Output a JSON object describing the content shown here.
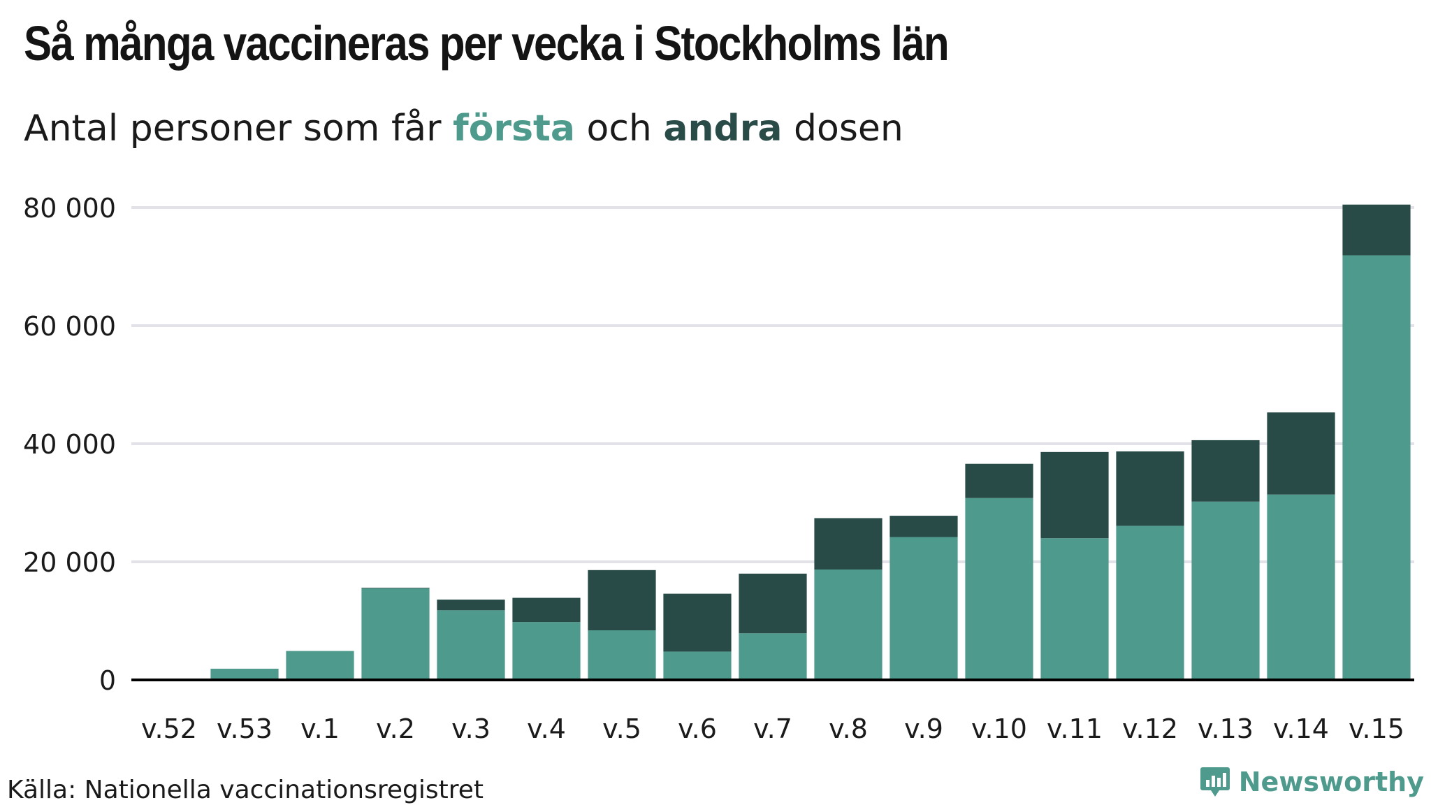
{
  "title": "Så många vaccineras per vecka i Stockholms län",
  "subtitle": {
    "prefix": "Antal personer som får ",
    "first": "första",
    "middle": " och ",
    "second": "andra",
    "suffix": " dosen"
  },
  "source": "Källa: Nationella vaccinationsregistret",
  "brand": "Newsworthy",
  "colors": {
    "first": "#4e9a8c",
    "second": "#284b47",
    "grid": "#e2e2e8",
    "axis": "#000000"
  },
  "chart_data": {
    "type": "bar",
    "stacked": true,
    "categories": [
      "v.52",
      "v.53",
      "v.1",
      "v.2",
      "v.3",
      "v.4",
      "v.5",
      "v.6",
      "v.7",
      "v.8",
      "v.9",
      "v.10",
      "v.11",
      "v.12",
      "v.13",
      "v.14",
      "v.15"
    ],
    "series": [
      {
        "name": "första",
        "color": "#4e9a8c",
        "values": [
          0,
          1900,
          4900,
          15500,
          11800,
          9800,
          8400,
          4800,
          7900,
          18700,
          24200,
          30800,
          24000,
          26100,
          30200,
          31400,
          71900
        ]
      },
      {
        "name": "andra",
        "color": "#284b47",
        "values": [
          0,
          0,
          0,
          100,
          1800,
          4100,
          10200,
          9800,
          10100,
          8700,
          3600,
          5800,
          14600,
          12600,
          10400,
          13900,
          8600
        ]
      }
    ],
    "yticks": [
      0,
      20000,
      40000,
      60000,
      80000
    ],
    "ytick_labels": [
      "0",
      "20 000",
      "40 000",
      "60 000",
      "80 000"
    ],
    "ylim": [
      0,
      80000
    ],
    "grid": true,
    "legend": "in subtitle"
  }
}
